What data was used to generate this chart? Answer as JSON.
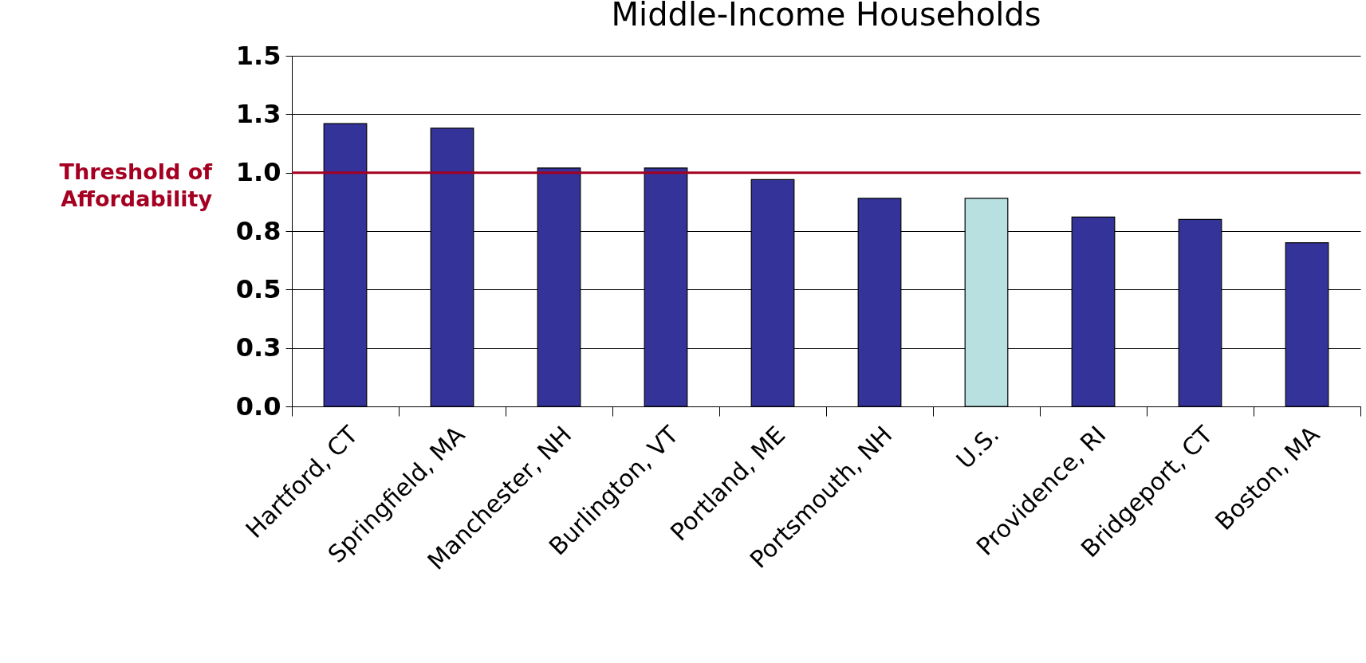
{
  "chart_data": {
    "type": "bar",
    "title": "Middle-Income Households",
    "categories": [
      "Hartford, CT",
      "Springfield, MA",
      "Manchester, NH",
      "Burlington, VT",
      "Portland, ME",
      "Portsmouth, NH",
      "U.S.",
      "Providence, RI",
      "Bridgeport, CT",
      "Boston, MA"
    ],
    "values": [
      1.21,
      1.19,
      1.02,
      1.02,
      0.97,
      0.89,
      0.89,
      0.81,
      0.8,
      0.7
    ],
    "colors": [
      "#333399",
      "#333399",
      "#333399",
      "#333399",
      "#333399",
      "#333399",
      "#b8e0e0",
      "#333399",
      "#333399",
      "#333399"
    ],
    "ylim": [
      0,
      1.5
    ],
    "yticks": [
      {
        "value": 0,
        "label": "0.0"
      },
      {
        "value": 0.25,
        "label": "0.3"
      },
      0.5,
      {
        "value": 0.75,
        "label": "0.8"
      },
      {
        "value": 1,
        "label": "1.0"
      },
      {
        "value": 1.25,
        "label": "1.3"
      },
      1.5
    ],
    "grid": "y",
    "ref_lines": [
      {
        "axis": "y",
        "value": 1,
        "label": "Threshold of Affordability",
        "color": "#a50021"
      }
    ]
  }
}
